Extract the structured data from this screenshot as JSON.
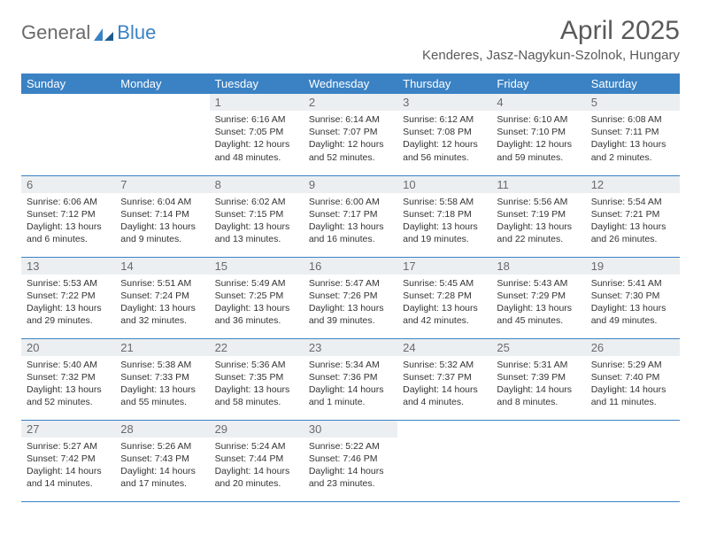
{
  "brand": {
    "part1": "General",
    "part2": "Blue"
  },
  "title": "April 2025",
  "location": "Kenderes, Jasz-Nagykun-Szolnok, Hungary",
  "columns": [
    "Sunday",
    "Monday",
    "Tuesday",
    "Wednesday",
    "Thursday",
    "Friday",
    "Saturday"
  ],
  "colors": {
    "header_bg": "#3b82c4",
    "header_text": "#ffffff",
    "daynum_bg": "#eceff1",
    "border": "#3b82c4",
    "text": "#333333",
    "title_text": "#5a5a5a"
  },
  "weeks": [
    [
      null,
      null,
      {
        "n": "1",
        "sr": "Sunrise: 6:16 AM",
        "ss": "Sunset: 7:05 PM",
        "dl": "Daylight: 12 hours and 48 minutes."
      },
      {
        "n": "2",
        "sr": "Sunrise: 6:14 AM",
        "ss": "Sunset: 7:07 PM",
        "dl": "Daylight: 12 hours and 52 minutes."
      },
      {
        "n": "3",
        "sr": "Sunrise: 6:12 AM",
        "ss": "Sunset: 7:08 PM",
        "dl": "Daylight: 12 hours and 56 minutes."
      },
      {
        "n": "4",
        "sr": "Sunrise: 6:10 AM",
        "ss": "Sunset: 7:10 PM",
        "dl": "Daylight: 12 hours and 59 minutes."
      },
      {
        "n": "5",
        "sr": "Sunrise: 6:08 AM",
        "ss": "Sunset: 7:11 PM",
        "dl": "Daylight: 13 hours and 2 minutes."
      }
    ],
    [
      {
        "n": "6",
        "sr": "Sunrise: 6:06 AM",
        "ss": "Sunset: 7:12 PM",
        "dl": "Daylight: 13 hours and 6 minutes."
      },
      {
        "n": "7",
        "sr": "Sunrise: 6:04 AM",
        "ss": "Sunset: 7:14 PM",
        "dl": "Daylight: 13 hours and 9 minutes."
      },
      {
        "n": "8",
        "sr": "Sunrise: 6:02 AM",
        "ss": "Sunset: 7:15 PM",
        "dl": "Daylight: 13 hours and 13 minutes."
      },
      {
        "n": "9",
        "sr": "Sunrise: 6:00 AM",
        "ss": "Sunset: 7:17 PM",
        "dl": "Daylight: 13 hours and 16 minutes."
      },
      {
        "n": "10",
        "sr": "Sunrise: 5:58 AM",
        "ss": "Sunset: 7:18 PM",
        "dl": "Daylight: 13 hours and 19 minutes."
      },
      {
        "n": "11",
        "sr": "Sunrise: 5:56 AM",
        "ss": "Sunset: 7:19 PM",
        "dl": "Daylight: 13 hours and 22 minutes."
      },
      {
        "n": "12",
        "sr": "Sunrise: 5:54 AM",
        "ss": "Sunset: 7:21 PM",
        "dl": "Daylight: 13 hours and 26 minutes."
      }
    ],
    [
      {
        "n": "13",
        "sr": "Sunrise: 5:53 AM",
        "ss": "Sunset: 7:22 PM",
        "dl": "Daylight: 13 hours and 29 minutes."
      },
      {
        "n": "14",
        "sr": "Sunrise: 5:51 AM",
        "ss": "Sunset: 7:24 PM",
        "dl": "Daylight: 13 hours and 32 minutes."
      },
      {
        "n": "15",
        "sr": "Sunrise: 5:49 AM",
        "ss": "Sunset: 7:25 PM",
        "dl": "Daylight: 13 hours and 36 minutes."
      },
      {
        "n": "16",
        "sr": "Sunrise: 5:47 AM",
        "ss": "Sunset: 7:26 PM",
        "dl": "Daylight: 13 hours and 39 minutes."
      },
      {
        "n": "17",
        "sr": "Sunrise: 5:45 AM",
        "ss": "Sunset: 7:28 PM",
        "dl": "Daylight: 13 hours and 42 minutes."
      },
      {
        "n": "18",
        "sr": "Sunrise: 5:43 AM",
        "ss": "Sunset: 7:29 PM",
        "dl": "Daylight: 13 hours and 45 minutes."
      },
      {
        "n": "19",
        "sr": "Sunrise: 5:41 AM",
        "ss": "Sunset: 7:30 PM",
        "dl": "Daylight: 13 hours and 49 minutes."
      }
    ],
    [
      {
        "n": "20",
        "sr": "Sunrise: 5:40 AM",
        "ss": "Sunset: 7:32 PM",
        "dl": "Daylight: 13 hours and 52 minutes."
      },
      {
        "n": "21",
        "sr": "Sunrise: 5:38 AM",
        "ss": "Sunset: 7:33 PM",
        "dl": "Daylight: 13 hours and 55 minutes."
      },
      {
        "n": "22",
        "sr": "Sunrise: 5:36 AM",
        "ss": "Sunset: 7:35 PM",
        "dl": "Daylight: 13 hours and 58 minutes."
      },
      {
        "n": "23",
        "sr": "Sunrise: 5:34 AM",
        "ss": "Sunset: 7:36 PM",
        "dl": "Daylight: 14 hours and 1 minute."
      },
      {
        "n": "24",
        "sr": "Sunrise: 5:32 AM",
        "ss": "Sunset: 7:37 PM",
        "dl": "Daylight: 14 hours and 4 minutes."
      },
      {
        "n": "25",
        "sr": "Sunrise: 5:31 AM",
        "ss": "Sunset: 7:39 PM",
        "dl": "Daylight: 14 hours and 8 minutes."
      },
      {
        "n": "26",
        "sr": "Sunrise: 5:29 AM",
        "ss": "Sunset: 7:40 PM",
        "dl": "Daylight: 14 hours and 11 minutes."
      }
    ],
    [
      {
        "n": "27",
        "sr": "Sunrise: 5:27 AM",
        "ss": "Sunset: 7:42 PM",
        "dl": "Daylight: 14 hours and 14 minutes."
      },
      {
        "n": "28",
        "sr": "Sunrise: 5:26 AM",
        "ss": "Sunset: 7:43 PM",
        "dl": "Daylight: 14 hours and 17 minutes."
      },
      {
        "n": "29",
        "sr": "Sunrise: 5:24 AM",
        "ss": "Sunset: 7:44 PM",
        "dl": "Daylight: 14 hours and 20 minutes."
      },
      {
        "n": "30",
        "sr": "Sunrise: 5:22 AM",
        "ss": "Sunset: 7:46 PM",
        "dl": "Daylight: 14 hours and 23 minutes."
      },
      null,
      null,
      null
    ]
  ]
}
